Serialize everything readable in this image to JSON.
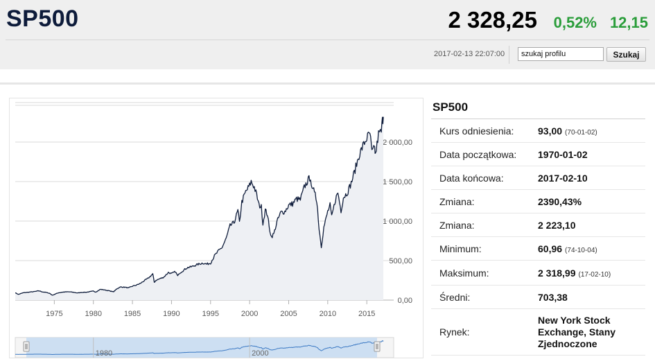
{
  "header": {
    "symbol": "SP500",
    "price": "2 328,25",
    "change_pct": "0,52%",
    "change_abs": "12,15",
    "timestamp": "2017-02-13 22:07:00",
    "search_value": "szukaj profilu",
    "search_button": "Szukaj"
  },
  "info": {
    "title": "SP500",
    "rows": [
      {
        "label": "Kurs odniesienia:",
        "value": "93,00",
        "note": "(70-01-02)"
      },
      {
        "label": "Data początkowa:",
        "value": "1970-01-02",
        "note": ""
      },
      {
        "label": "Data końcowa:",
        "value": "2017-02-10",
        "note": ""
      },
      {
        "label": "Zmiana:",
        "value": "2390,43%",
        "note": ""
      },
      {
        "label": "Zmiana:",
        "value": "2 223,10",
        "note": ""
      },
      {
        "label": "Minimum:",
        "value": "60,96",
        "note": "(74-10-04)"
      },
      {
        "label": "Maksimum:",
        "value": "2 318,99",
        "note": "(17-02-10)"
      },
      {
        "label": "Średni:",
        "value": "703,38",
        "note": ""
      },
      {
        "label": "Rynek:",
        "value": "New York Stock Exchange, Stany Zjednoczone",
        "note": ""
      }
    ]
  },
  "colors": {
    "line": "#0d1b3a",
    "area": "#eef0f4",
    "positive": "#2a9d3a",
    "navigator_fill": "#c9ddf2",
    "navigator_line": "#3a78c3"
  },
  "chart_data": {
    "type": "line",
    "x_tick_labels": [
      "1975",
      "1980",
      "1985",
      "1990",
      "1995",
      "2000",
      "2005",
      "2010",
      "2015"
    ],
    "y_tick_labels": [
      "0,00",
      "500,00",
      "1 000,00",
      "1 500,00",
      "2 000,00"
    ],
    "y_ticks": [
      0,
      500,
      1000,
      1500,
      2000
    ],
    "ylim": [
      0,
      2500
    ],
    "xlim": [
      1970.0,
      2017.2
    ],
    "grid": true,
    "series": [
      {
        "values": [
          [
            1970.0,
            93
          ],
          [
            1970.4,
            72
          ],
          [
            1971.0,
            92
          ],
          [
            1971.5,
            98
          ],
          [
            1972.0,
            103
          ],
          [
            1972.5,
            108
          ],
          [
            1973.0,
            118
          ],
          [
            1973.5,
            104
          ],
          [
            1974.0,
            96
          ],
          [
            1974.4,
            86
          ],
          [
            1974.76,
            61
          ],
          [
            1975.0,
            72
          ],
          [
            1975.5,
            92
          ],
          [
            1976.0,
            100
          ],
          [
            1976.5,
            104
          ],
          [
            1977.0,
            104
          ],
          [
            1977.5,
            98
          ],
          [
            1978.0,
            90
          ],
          [
            1978.5,
            98
          ],
          [
            1979.0,
            99
          ],
          [
            1979.5,
            105
          ],
          [
            1980.0,
            114
          ],
          [
            1980.3,
            102
          ],
          [
            1980.9,
            136
          ],
          [
            1981.5,
            128
          ],
          [
            1982.0,
            118
          ],
          [
            1982.6,
            104
          ],
          [
            1982.9,
            138
          ],
          [
            1983.5,
            166
          ],
          [
            1984.0,
            163
          ],
          [
            1984.5,
            154
          ],
          [
            1985.0,
            176
          ],
          [
            1985.5,
            190
          ],
          [
            1986.0,
            210
          ],
          [
            1986.5,
            245
          ],
          [
            1987.0,
            275
          ],
          [
            1987.6,
            330
          ],
          [
            1987.8,
            225
          ],
          [
            1988.0,
            250
          ],
          [
            1988.5,
            270
          ],
          [
            1989.0,
            290
          ],
          [
            1989.6,
            350
          ],
          [
            1990.0,
            335
          ],
          [
            1990.5,
            360
          ],
          [
            1990.8,
            305
          ],
          [
            1991.0,
            340
          ],
          [
            1991.5,
            375
          ],
          [
            1992.0,
            410
          ],
          [
            1992.5,
            420
          ],
          [
            1993.0,
            440
          ],
          [
            1993.5,
            455
          ],
          [
            1994.0,
            470
          ],
          [
            1994.5,
            455
          ],
          [
            1995.0,
            470
          ],
          [
            1995.5,
            560
          ],
          [
            1996.0,
            620
          ],
          [
            1996.5,
            670
          ],
          [
            1997.0,
            780
          ],
          [
            1997.5,
            940
          ],
          [
            1998.0,
            980
          ],
          [
            1998.5,
            1130
          ],
          [
            1998.7,
            980
          ],
          [
            1999.0,
            1240
          ],
          [
            1999.5,
            1370
          ],
          [
            2000.0,
            1450
          ],
          [
            2000.2,
            1500
          ],
          [
            2000.6,
            1430
          ],
          [
            2000.9,
            1330
          ],
          [
            2001.2,
            1200
          ],
          [
            2001.5,
            1180
          ],
          [
            2001.7,
            970
          ],
          [
            2002.0,
            1140
          ],
          [
            2002.3,
            1080
          ],
          [
            2002.5,
            920
          ],
          [
            2002.8,
            800
          ],
          [
            2003.1,
            840
          ],
          [
            2003.5,
            990
          ],
          [
            2004.0,
            1110
          ],
          [
            2004.5,
            1120
          ],
          [
            2005.0,
            1200
          ],
          [
            2005.5,
            1220
          ],
          [
            2006.0,
            1280
          ],
          [
            2006.5,
            1270
          ],
          [
            2007.0,
            1430
          ],
          [
            2007.5,
            1520
          ],
          [
            2007.8,
            1560
          ],
          [
            2008.0,
            1380
          ],
          [
            2008.4,
            1390
          ],
          [
            2008.7,
            1150
          ],
          [
            2008.9,
            900
          ],
          [
            2009.18,
            680
          ],
          [
            2009.5,
            920
          ],
          [
            2010.0,
            1120
          ],
          [
            2010.3,
            1200
          ],
          [
            2010.5,
            1050
          ],
          [
            2011.0,
            1280
          ],
          [
            2011.3,
            1360
          ],
          [
            2011.7,
            1130
          ],
          [
            2012.0,
            1300
          ],
          [
            2012.5,
            1360
          ],
          [
            2013.0,
            1480
          ],
          [
            2013.5,
            1650
          ],
          [
            2014.0,
            1830
          ],
          [
            2014.5,
            1950
          ],
          [
            2015.0,
            2050
          ],
          [
            2015.4,
            2110
          ],
          [
            2015.65,
            1870
          ],
          [
            2016.0,
            1920
          ],
          [
            2016.12,
            1840
          ],
          [
            2016.5,
            2100
          ],
          [
            2016.85,
            2130
          ],
          [
            2017.0,
            2270
          ],
          [
            2017.12,
            2319
          ]
        ]
      }
    ],
    "navigator": {
      "x_tick_labels": [
        "1980",
        "2000"
      ]
    }
  }
}
